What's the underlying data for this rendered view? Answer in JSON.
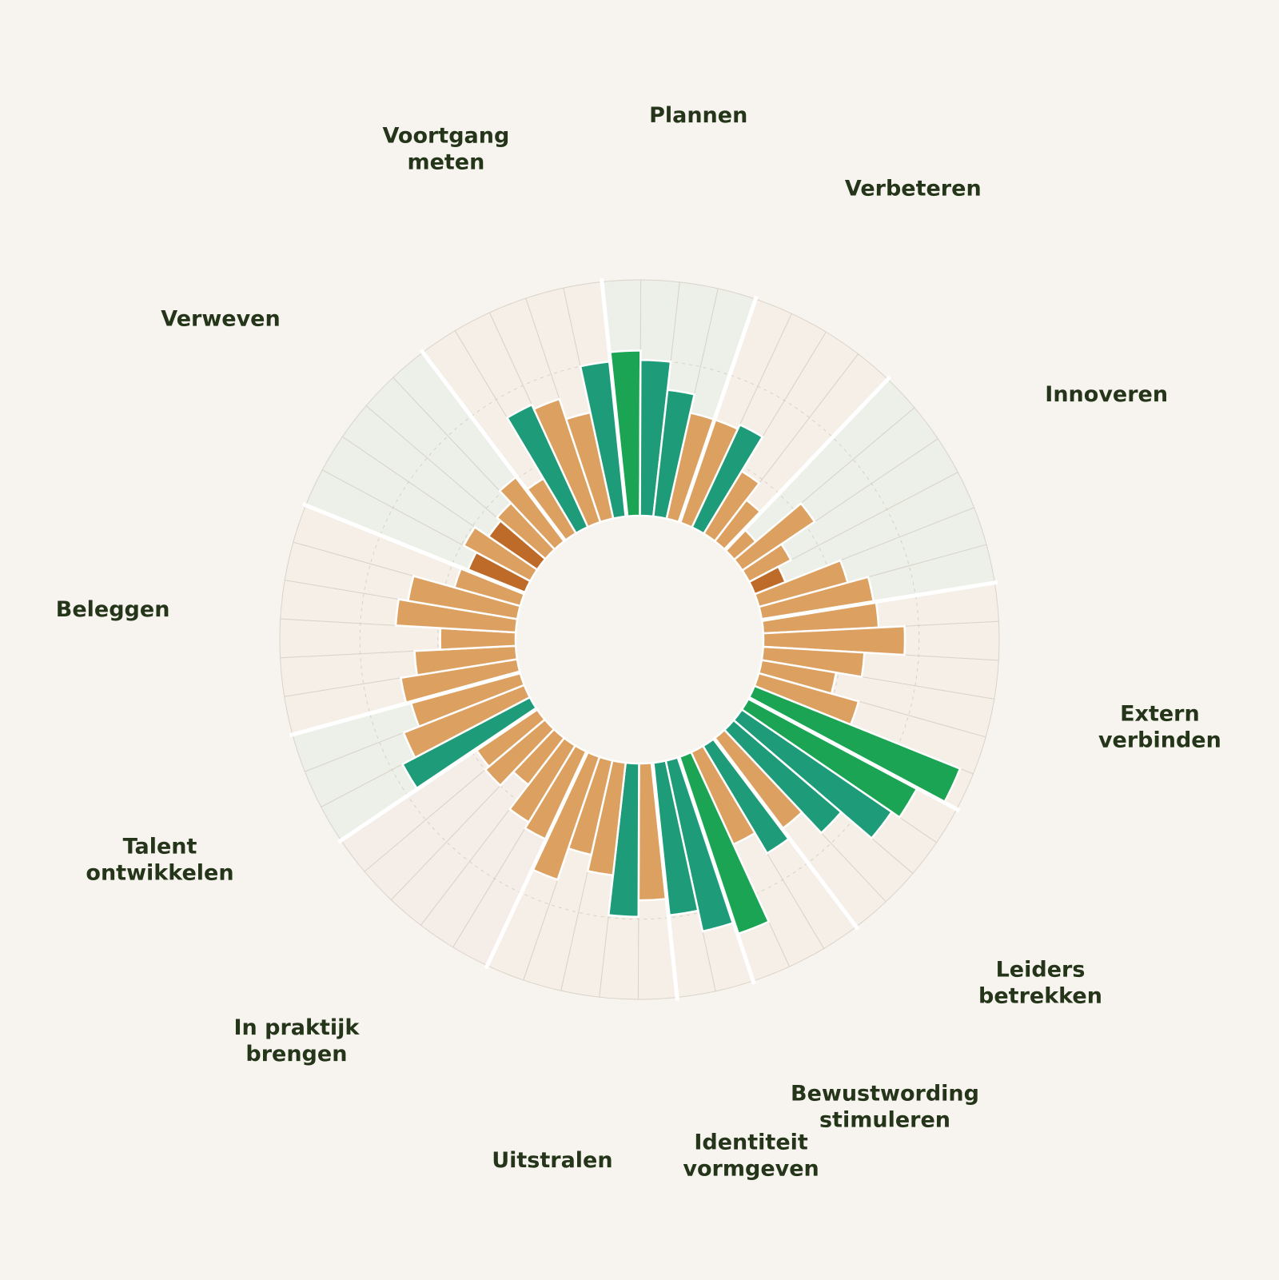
{
  "colors": {
    "background": "#f7f4ef",
    "label_text": "#25351a",
    "bar_orange": "#dca060",
    "bar_dark_orange": "#be6b29",
    "bar_teal": "#1e9c7a",
    "bar_green": "#1aa454",
    "bg_green_sector": "#ecf0e8",
    "bg_cream_sector": "#f5efe7",
    "bg_pink_sector": "#f5ede8"
  },
  "chart_data": {
    "type": "radial-bar",
    "value_range": [
      0,
      1
    ],
    "grid": "dashed-circles",
    "segments": [
      {
        "label": "Plannen",
        "background": "green",
        "bars": [
          {
            "value": 0.7,
            "category": "green"
          },
          {
            "value": 0.66,
            "category": "teal"
          },
          {
            "value": 0.54,
            "category": "teal"
          },
          {
            "value": 0.46,
            "category": "orange"
          }
        ]
      },
      {
        "label": "Verbeteren",
        "background": "cream",
        "bars": [
          {
            "value": 0.46,
            "category": "orange"
          },
          {
            "value": 0.48,
            "category": "teal"
          },
          {
            "value": 0.31,
            "category": "orange"
          },
          {
            "value": 0.22,
            "category": "orange"
          }
        ]
      },
      {
        "label": "Innoveren",
        "background": "green",
        "bars": [
          {
            "value": 0.12,
            "category": "orange"
          },
          {
            "value": 0.37,
            "category": "orange"
          },
          {
            "value": 0.2,
            "category": "orange"
          },
          {
            "value": 0.14,
            "category": "dark-orange"
          },
          {
            "value": 0.39,
            "category": "orange"
          },
          {
            "value": 0.48,
            "category": "orange"
          }
        ]
      },
      {
        "label": "Extern verbinden",
        "background": "cream",
        "bars": [
          {
            "value": 0.49,
            "category": "orange"
          },
          {
            "value": 0.6,
            "category": "orange"
          },
          {
            "value": 0.43,
            "category": "orange"
          },
          {
            "value": 0.32,
            "category": "orange"
          },
          {
            "value": 0.44,
            "category": "orange"
          },
          {
            "value": 0.94,
            "category": "green"
          }
        ]
      },
      {
        "label": "Leiders betrekken",
        "background": "cream",
        "bars": [
          {
            "value": 0.81,
            "category": "green"
          },
          {
            "value": 0.77,
            "category": "teal"
          },
          {
            "value": 0.6,
            "category": "teal"
          },
          {
            "value": 0.48,
            "category": "orange"
          }
        ]
      },
      {
        "label": "Bewustwording stimuleren",
        "background": "cream",
        "bars": [
          {
            "value": 0.53,
            "category": "teal"
          },
          {
            "value": 0.43,
            "category": "orange"
          },
          {
            "value": 0.79,
            "category": "green"
          }
        ]
      },
      {
        "label": "Identiteit vormgeven",
        "background": "cream",
        "bars": [
          {
            "value": 0.74,
            "category": "teal"
          },
          {
            "value": 0.65,
            "category": "teal"
          }
        ]
      },
      {
        "label": "Uitstralen",
        "background": "cream",
        "bars": [
          {
            "value": 0.58,
            "category": "orange"
          },
          {
            "value": 0.65,
            "category": "teal"
          },
          {
            "value": 0.48,
            "category": "orange"
          },
          {
            "value": 0.41,
            "category": "orange"
          },
          {
            "value": 0.55,
            "category": "orange"
          }
        ]
      },
      {
        "label": "In praktijk brengen",
        "background": "pink",
        "bars": [
          {
            "value": 0.41,
            "category": "orange"
          },
          {
            "value": 0.38,
            "category": "orange"
          },
          {
            "value": 0.25,
            "category": "orange"
          },
          {
            "value": 0.33,
            "category": "orange"
          },
          {
            "value": 0.31,
            "category": "orange"
          }
        ]
      },
      {
        "label": "Talent ontwikkelen",
        "background": "green",
        "bars": [
          {
            "value": 0.61,
            "category": "teal"
          },
          {
            "value": 0.55,
            "category": "orange"
          },
          {
            "value": 0.48,
            "category": "orange"
          }
        ]
      },
      {
        "label": "Beleggen",
        "background": "cream",
        "bars": [
          {
            "value": 0.5,
            "category": "orange"
          },
          {
            "value": 0.43,
            "category": "orange"
          },
          {
            "value": 0.32,
            "category": "orange"
          },
          {
            "value": 0.51,
            "category": "orange"
          },
          {
            "value": 0.47,
            "category": "orange"
          },
          {
            "value": 0.29,
            "category": "orange"
          }
        ]
      },
      {
        "label": "Verweven",
        "background": "green",
        "bars": [
          {
            "value": 0.26,
            "category": "dark-orange"
          },
          {
            "value": 0.32,
            "category": "orange"
          },
          {
            "value": 0.25,
            "category": "dark-orange"
          },
          {
            "value": 0.27,
            "category": "orange"
          },
          {
            "value": 0.34,
            "category": "orange"
          }
        ]
      },
      {
        "label": "Voortgang meten",
        "background": "cream",
        "bars": [
          {
            "value": 0.27,
            "category": "orange"
          },
          {
            "value": 0.57,
            "category": "teal"
          },
          {
            "value": 0.55,
            "category": "orange"
          },
          {
            "value": 0.46,
            "category": "orange"
          },
          {
            "value": 0.66,
            "category": "teal"
          }
        ]
      }
    ]
  }
}
